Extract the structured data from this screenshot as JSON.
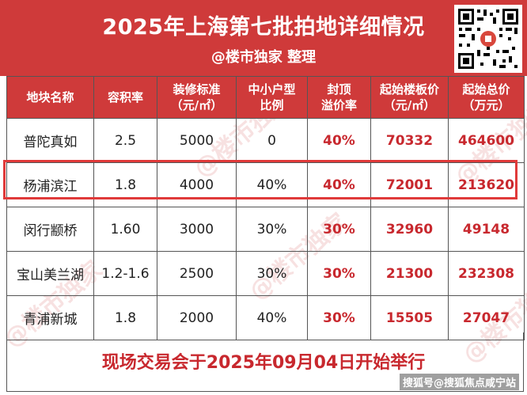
{
  "header": {
    "title": "2025年上海第七批拍地详细情况",
    "subtitle": "@楼市独家 整理"
  },
  "table": {
    "columns": [
      {
        "line1": "地块名称",
        "line2": ""
      },
      {
        "line1": "容积率",
        "line2": ""
      },
      {
        "line1": "装修标准",
        "line2": "（元/㎡）"
      },
      {
        "line1": "中小户型",
        "line2": "比例"
      },
      {
        "line1": "封顶",
        "line2": "溢价率"
      },
      {
        "line1": "起始楼板价",
        "line2": "（元/㎡）"
      },
      {
        "line1": "起始总价",
        "line2": "（万元）"
      }
    ],
    "rows": [
      {
        "name": "普陀真如",
        "far": "2.5",
        "deco": "5000",
        "small": "0",
        "cap": "40%",
        "unit_price": "70332",
        "total": "464600"
      },
      {
        "name": "杨浦滨江",
        "far": "1.8",
        "deco": "4000",
        "small": "40%",
        "cap": "40%",
        "unit_price": "72001",
        "total": "213620"
      },
      {
        "name": "闵行颛桥",
        "far": "1.60",
        "deco": "3000",
        "small": "30%",
        "cap": "30%",
        "unit_price": "32960",
        "total": "49148"
      },
      {
        "name": "宝山美兰湖",
        "far": "1.2-1.6",
        "deco": "2500",
        "small": "30%",
        "cap": "30%",
        "unit_price": "21300",
        "total": "232308"
      },
      {
        "name": "青浦新城",
        "far": "1.8",
        "deco": "2000",
        "small": "40%",
        "cap": "30%",
        "unit_price": "15505",
        "total": "27047"
      }
    ]
  },
  "footer": {
    "text": "现场交易会于2025年09月04日开始举行",
    "source": "搜狐号@搜狐焦点咸宁站"
  },
  "watermark": "@楼市独家",
  "colors": {
    "header_red": "#cf3a3a",
    "value_red": "#c8282e",
    "highlight_border": "#e03a3a"
  }
}
